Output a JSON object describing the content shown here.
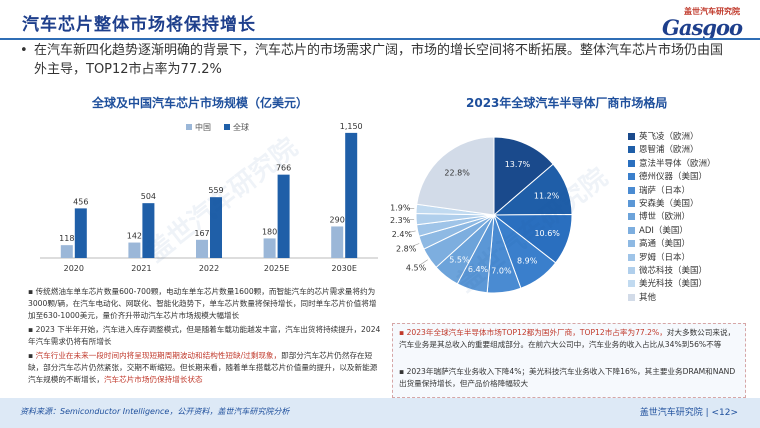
{
  "header": {
    "title": "汽车芯片整体市场将保持增长",
    "logo_cn": "盖世汽车研究院",
    "logo_en": "Gasgoo"
  },
  "intro": {
    "bullet": "•",
    "text": "在汽车新四化趋势逐渐明确的背景下，汽车芯片的市场需求广阔，市场的增长空间将不断拓展。整体汽车芯片市场仍由国外主导，TOP12市占率为77.2%"
  },
  "colors": {
    "china": "#9bb7d8",
    "global": "#1f5fa8",
    "title": "#1e3f8c"
  },
  "left_chart_title": "全球及中国汽车芯片市场规模（亿美元）",
  "right_chart_title": "2023年全球汽车半导体厂商市场格局",
  "chart_data": [
    {
      "type": "bar",
      "categories": [
        "2020",
        "2021",
        "2022",
        "2025E",
        "2030E"
      ],
      "series": [
        {
          "name": "中国",
          "values": [
            118,
            142,
            167,
            180,
            290
          ]
        },
        {
          "name": "全球",
          "values": [
            456,
            504,
            559,
            766,
            1150
          ]
        }
      ],
      "value_labels": {
        "中国": [
          "118",
          "142",
          "167",
          "180",
          "290"
        ],
        "全球": [
          "456",
          "504",
          "559",
          "766",
          "1,150"
        ]
      },
      "ylim": [
        0,
        1250
      ],
      "grid": false,
      "legend": "top"
    },
    {
      "type": "pie",
      "labels": [
        "英飞凌（欧洲）",
        "恩智浦（欧洲）",
        "意法半导体（欧洲）",
        "德州仪器（美国）",
        "瑞萨（日本）",
        "安森美（美国）",
        "博世（欧洲）",
        "ADI（美国）",
        "高通（美国）",
        "罗姆（日本）",
        "微芯科技（美国）",
        "美光科技（美国）",
        "其他"
      ],
      "values": [
        13.7,
        11.2,
        10.6,
        8.9,
        7.0,
        6.4,
        5.5,
        4.5,
        2.8,
        2.4,
        2.3,
        1.9,
        22.8
      ],
      "value_labels": [
        "13.7%",
        "11.2%",
        "10.6%",
        "8.9%",
        "7.0%",
        "6.4%",
        "5.5%",
        "4.5%",
        "2.8%",
        "2.4%",
        "2.3%",
        "1.9%",
        "22.8%"
      ],
      "colors": [
        "#1a4a8c",
        "#1f5ea8",
        "#2a6fbf",
        "#3a7fcc",
        "#4a8bd2",
        "#5b97d6",
        "#6ca3da",
        "#7daedf",
        "#8eb9e3",
        "#9fc4e8",
        "#b0cfec",
        "#c1daf0",
        "#d2dbe8"
      ],
      "legend": "right"
    }
  ],
  "left_notes": [
    {
      "text": "传统燃油车单车芯片数量600-700颗，电动车单车芯片数量1600颗，而智能汽车的芯片需求量将约为3000颗/辆，在汽车电动化、网联化、智能化趋势下，单车芯片数量将保持增长，同时单车芯片价值将增加至630-1000美元，量价齐升带动汽车芯片市场规模大幅增长"
    },
    {
      "text": "2023 下半年开始，汽车进入库存调整模式，但是随着车载功能越发丰富，汽车出货将持续提升，2024年汽车需求仍将有所增长"
    },
    {
      "red1": "汽车行业在未来一段时间内将呈现短期周期波动和结构性短缺/过剩现象，",
      "mid": "即部分汽车芯片仍然存在短缺，部分汽车芯片仍然紧张，交期不断缩短。但长期来看，随着单车搭载芯片价值量的提升，以及新能源汽车规模的不断增长，",
      "red2": "汽车芯片市场仍保持增长状态"
    }
  ],
  "right_notes": [
    {
      "red": "2023年全球汽车半导体市场TOP12都为国外厂商，TOP12市占率为77.2%，",
      "rest": "对大多数公司来说，汽车业务是其总收入的重要组成部分。在前六大公司中，汽车业务的收入占比从34%到56%不等"
    },
    {
      "rest": "2023年瑞萨汽车业务收入下降4%；美光科技汽车业务收入下降16%，其主要业务DRAM和NAND出货量保持增长，但产品价格降幅较大"
    }
  ],
  "footer": {
    "source": "资料来源：Semiconductor Intelligence，公开资料，盖世汽车研究院分析",
    "page": "盖世汽车研究院 | <12>"
  }
}
